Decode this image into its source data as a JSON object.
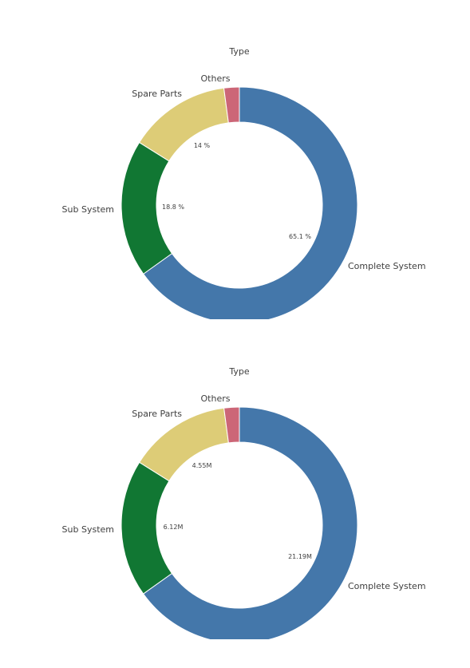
{
  "chart_data": [
    {
      "type": "pie",
      "title": "Type",
      "categories": [
        "Complete System",
        "Sub System",
        "Spare Parts",
        "Others"
      ],
      "values": [
        65.1,
        18.8,
        14,
        2.1
      ],
      "value_labels": [
        "65.1 %",
        "18.8 %",
        "14 %",
        ""
      ],
      "unit": "%",
      "colors": [
        "#4477aa",
        "#117733",
        "#ddcc77",
        "#cc6677"
      ],
      "donut": true,
      "legend": "none"
    },
    {
      "type": "pie",
      "title": "Type",
      "categories": [
        "Complete System",
        "Sub System",
        "Spare Parts",
        "Others"
      ],
      "values": [
        21.19,
        6.12,
        4.55,
        0.68
      ],
      "value_labels": [
        "21.19M",
        "6.12M",
        "4.55M",
        ""
      ],
      "unit": "M",
      "colors": [
        "#4477aa",
        "#117733",
        "#ddcc77",
        "#cc6677"
      ],
      "donut": true,
      "legend": "none"
    }
  ]
}
